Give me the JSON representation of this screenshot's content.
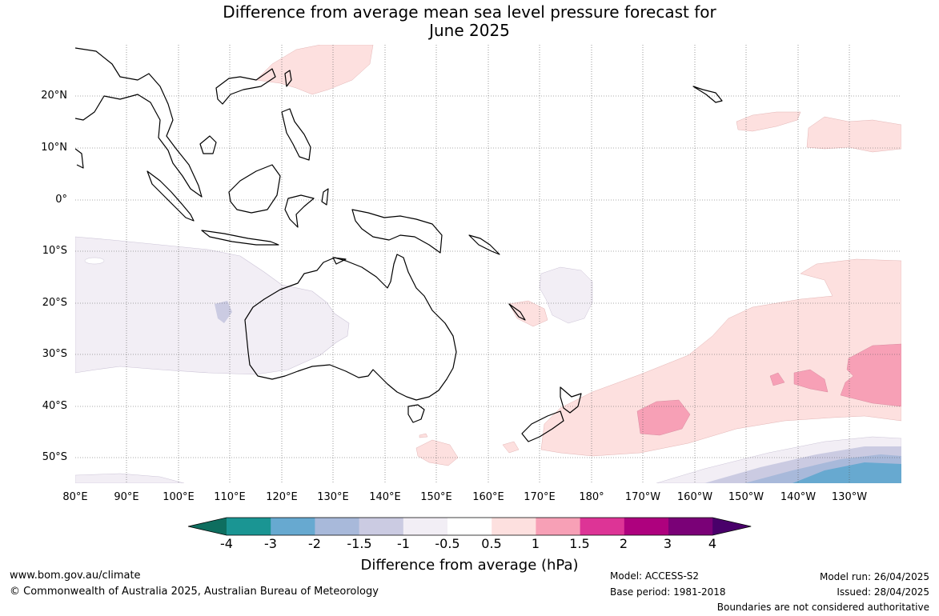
{
  "title_line1": "Difference from average mean sea level pressure forecast for",
  "title_line2": "June 2025",
  "lat_labels": [
    "20°N",
    "10°N",
    "0°",
    "10°S",
    "20°S",
    "30°S",
    "40°S",
    "50°S"
  ],
  "lon_labels": [
    "80°E",
    "90°E",
    "100°E",
    "110°E",
    "120°E",
    "130°E",
    "140°E",
    "150°E",
    "160°E",
    "170°E",
    "180°",
    "170°W",
    "160°W",
    "150°W",
    "140°W",
    "130°W"
  ],
  "colorbar": {
    "title": "Difference from average (hPa)",
    "ticks": [
      "-4",
      "-3",
      "-2",
      "-1.5",
      "-1",
      "-0.5",
      "0.5",
      "1",
      "1.5",
      "2",
      "3",
      "4"
    ],
    "colors": [
      "#0e6e5f",
      "#1a9593",
      "#67a9d0",
      "#a8b9da",
      "#cbcbe2",
      "#f2eef5",
      "#ffffff",
      "#fde0df",
      "#f7a0b6",
      "#dd3496",
      "#ae017e",
      "#7a0177",
      "#49006a"
    ]
  },
  "footer": {
    "website": "www.bom.gov.au/climate",
    "copyright": "© Commonwealth of Australia 2025, Australian Bureau of Meteorology",
    "model": "Model: ACCESS-S2",
    "base_period": "Base period: 1981-2018",
    "model_run": "Model run: 26/04/2025",
    "issued": "Issued: 28/04/2025",
    "disclaimer": "Boundaries are not considered authoritative"
  }
}
